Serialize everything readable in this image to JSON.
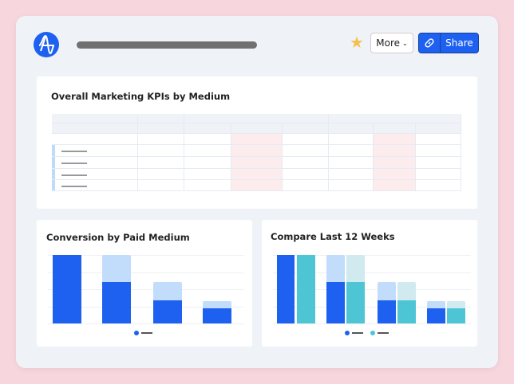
{
  "header": {
    "title_placeholder": "",
    "more_label": "More",
    "share_label": "Share",
    "icons": {
      "logo": "amplitude-logo",
      "favorite": "star-icon",
      "more": "chevron-down-icon",
      "share": "link-icon"
    },
    "favorite_color": "#f5c04f",
    "accent": "#1e61f0"
  },
  "kpi_panel": {
    "title": "Overall Marketing KPIs by Medium",
    "rows": 4,
    "highlight_color": "#fdecee"
  },
  "charts": {
    "conversion": {
      "title": "Conversion by Paid Medium"
    },
    "compare": {
      "title": "Compare Last 12 Weeks"
    }
  },
  "chart_data": [
    {
      "type": "bar",
      "title": "Conversion by Paid Medium",
      "stacked_overlay": true,
      "categories": [
        "",
        "",
        "",
        ""
      ],
      "series": [
        {
          "values": [
            100,
            60,
            34,
            22
          ],
          "color": "#1e61f0"
        },
        {
          "values": [
            100,
            100,
            60,
            33
          ],
          "color": "#c2ddfb"
        }
      ],
      "ylim": [
        0,
        100
      ],
      "grid": true,
      "legend": "bottom"
    },
    {
      "type": "bar",
      "title": "Compare Last 12 Weeks",
      "stacked_overlay": true,
      "categories": [
        "",
        "",
        "",
        ""
      ],
      "series": [
        {
          "values": [
            100,
            60,
            34,
            22
          ],
          "color": "#1e61f0",
          "bg": [
            100,
            100,
            60,
            33
          ],
          "bg_color": "#c2ddfb"
        },
        {
          "values": [
            100,
            60,
            34,
            22
          ],
          "color": "#4ec5d4",
          "bg": [
            100,
            100,
            60,
            33
          ],
          "bg_color": "#d0eaf0"
        }
      ],
      "ylim": [
        0,
        100
      ],
      "grid": true,
      "legend": "bottom"
    }
  ]
}
